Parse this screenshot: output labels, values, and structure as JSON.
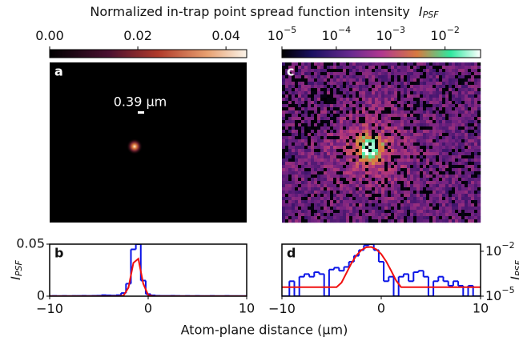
{
  "title": "Normalized in-trap point spread function intensity",
  "title_symbol": "I",
  "title_subscript": "PSF",
  "colorbars": [
    {
      "scale": "linear",
      "lim": [
        0,
        0.0447
      ],
      "ticks": [
        {
          "value": 0,
          "label": "0.00"
        },
        {
          "value": 0.02,
          "label": "0.02"
        },
        {
          "value": 0.04,
          "label": "0.04"
        }
      ]
    },
    {
      "scale": "log",
      "lim": [
        1e-05,
        0.045
      ],
      "ticks": [
        {
          "value": 1e-05,
          "label": "10",
          "exponent": "−5"
        },
        {
          "value": 0.0001,
          "label": "10",
          "exponent": "−4"
        },
        {
          "value": 0.001,
          "label": "10",
          "exponent": "−3"
        },
        {
          "value": 0.01,
          "label": "10",
          "exponent": "−2"
        }
      ]
    }
  ],
  "images": [
    {
      "label": "a",
      "scale_bar": "0.39 μm"
    },
    {
      "label": "c"
    }
  ],
  "x_label": "Atom-plane distance (μm)",
  "chart_data": [
    {
      "type": "line",
      "label": "b",
      "y_label": "I",
      "y_label_subscript": "PSF",
      "axis_side": "left",
      "yscale": "linear",
      "xlim": [
        -10,
        10
      ],
      "xticks": [
        {
          "value": -10,
          "label": "−10"
        },
        0,
        10
      ],
      "ylim": [
        0,
        0.05
      ],
      "yticks": [
        0,
        0.05
      ],
      "x": [
        -10,
        -9.5,
        -9,
        -8.5,
        -8,
        -7.5,
        -7,
        -6.5,
        -6,
        -5.5,
        -5,
        -4.5,
        -4,
        -3.5,
        -3,
        -2.5,
        -2,
        -1.5,
        -1,
        -0.5,
        0,
        0.5,
        1,
        1.5,
        2,
        2.5,
        3,
        3.5,
        4,
        4.5,
        5,
        5.5,
        6,
        6.5,
        7,
        7.5,
        8,
        8.5,
        9,
        9.5,
        10
      ],
      "series": [
        {
          "color": "#0a14e6",
          "style": "step",
          "values": [
            0.0002,
            0.0003,
            0.0002,
            0.0003,
            0.0002,
            0.0003,
            0.0003,
            0.0004,
            0.0003,
            0.0004,
            0.0005,
            0.001,
            0.0008,
            0.0006,
            0.001,
            0.003,
            0.012,
            0.045,
            0.05,
            0.015,
            0.002,
            0.0008,
            0.0004,
            0.0003,
            0.0003,
            0.0004,
            0.0003,
            0.0002,
            0.0003,
            0.0002,
            0.0003,
            0.0002,
            0.0002,
            0.0003,
            0.0002,
            0.0002,
            0.0003,
            0.0002,
            0.0002,
            0.0002,
            0.0002
          ]
        },
        {
          "color": "#f01010",
          "style": "line",
          "values": [
            0,
            0,
            0,
            0,
            0,
            0,
            0,
            0,
            0,
            0,
            0,
            0,
            0,
            0,
            0,
            0.0006,
            0.0082,
            0.032,
            0.036,
            0.012,
            0.0011,
            0,
            0,
            0,
            0,
            0,
            0,
            0,
            0,
            0,
            0,
            0,
            0,
            0,
            0,
            0,
            0,
            0,
            0,
            0,
            0
          ]
        }
      ]
    },
    {
      "type": "line",
      "label": "d",
      "y_label": "I",
      "y_label_subscript": "PSF",
      "axis_side": "right",
      "yscale": "log",
      "xlim": [
        -10,
        10
      ],
      "xticks": [
        {
          "value": -10,
          "label": "−10"
        },
        0,
        10
      ],
      "ylim": [
        1e-05,
        0.03
      ],
      "yticks": [
        {
          "value": 0.01,
          "label": "10",
          "exponent": "−2"
        },
        {
          "value": 1e-05,
          "label": "10",
          "exponent": "−5"
        }
      ],
      "x": [
        -10,
        -9.5,
        -9,
        -8.5,
        -8,
        -7.5,
        -7,
        -6.5,
        -6,
        -5.5,
        -5,
        -4.5,
        -4,
        -3.5,
        -3,
        -2.5,
        -2,
        -1.5,
        -1,
        -0.5,
        0,
        0.5,
        1,
        1.5,
        2,
        2.5,
        3,
        3.5,
        4,
        4.5,
        5,
        5.5,
        6,
        6.5,
        7,
        7.5,
        8,
        8.5,
        9,
        9.5,
        10
      ],
      "series": [
        {
          "color": "#0a14e6",
          "style": "step",
          "values": [
            1e-05,
            1e-05,
            0.0001,
            1e-05,
            0.0002,
            0.0003,
            0.0002,
            0.0004,
            0.0003,
            1e-05,
            0.0006,
            0.0008,
            0.0005,
            0.0009,
            0.002,
            0.005,
            0.012,
            0.025,
            0.03,
            0.012,
            0.002,
            0.0001,
            0.0002,
            1e-05,
            0.0002,
            0.0003,
            0.0001,
            0.0004,
            0.0005,
            0.0002,
            1e-05,
            0.0001,
            0.0002,
            0.0001,
            5e-05,
            0.0001,
            5e-05,
            1e-05,
            5e-05,
            1e-05,
            1e-05
          ]
        },
        {
          "color": "#f01010",
          "style": "line",
          "values": [
            4e-05,
            4e-05,
            4e-05,
            4e-05,
            4e-05,
            4e-05,
            4e-05,
            4e-05,
            4e-05,
            4e-05,
            4e-05,
            4e-05,
            8e-05,
            0.00036,
            0.0016,
            0.0053,
            0.012,
            0.0187,
            0.0194,
            0.0136,
            0.0065,
            0.0021,
            0.0005,
            0.00011,
            4e-05,
            4e-05,
            4e-05,
            4e-05,
            4e-05,
            4e-05,
            4e-05,
            4e-05,
            4e-05,
            4e-05,
            4e-05,
            4e-05,
            4e-05,
            4e-05,
            4e-05,
            4e-05,
            4e-05
          ]
        }
      ]
    }
  ]
}
